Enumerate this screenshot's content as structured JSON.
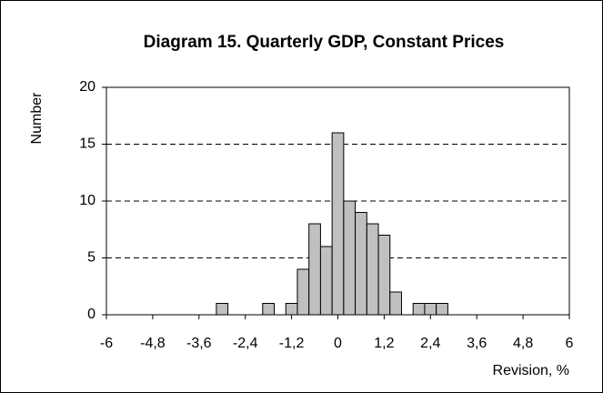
{
  "chart_data": {
    "type": "histogram",
    "title": "Diagram 15.  Quarterly GDP, Constant Prices",
    "x_label": "Revision, %",
    "y_label": "Number",
    "bins": [
      -3.15,
      -2.85,
      -2.55,
      -2.25,
      -1.95,
      -1.65,
      -1.35,
      -1.05,
      -0.75,
      -0.45,
      -0.15,
      0.15,
      0.45,
      0.75,
      1.05,
      1.35,
      1.65,
      1.95,
      2.25,
      2.55,
      2.85
    ],
    "values": [
      1,
      0,
      0,
      0,
      1,
      0,
      1,
      4,
      8,
      6,
      16,
      10,
      9,
      8,
      7,
      2,
      0,
      1,
      1,
      1
    ],
    "color": "#c0c0c0",
    "xlim": [
      -6,
      6
    ],
    "xticks": [
      -6,
      {
        "value": -4.8,
        "label": "-4,8"
      },
      {
        "value": -3.6,
        "label": "-3,6"
      },
      {
        "value": -2.4,
        "label": "-2,4"
      },
      {
        "value": -1.2,
        "label": "-1,2"
      },
      0,
      {
        "value": 1.2,
        "label": "1,2"
      },
      {
        "value": 2.4,
        "label": "2,4"
      },
      {
        "value": 3.6,
        "label": "3,6"
      },
      {
        "value": 4.8,
        "label": "4,8"
      },
      6
    ],
    "ylim": [
      0,
      20
    ],
    "yticks": [
      0,
      5,
      10,
      15,
      20
    ],
    "grid": true
  }
}
